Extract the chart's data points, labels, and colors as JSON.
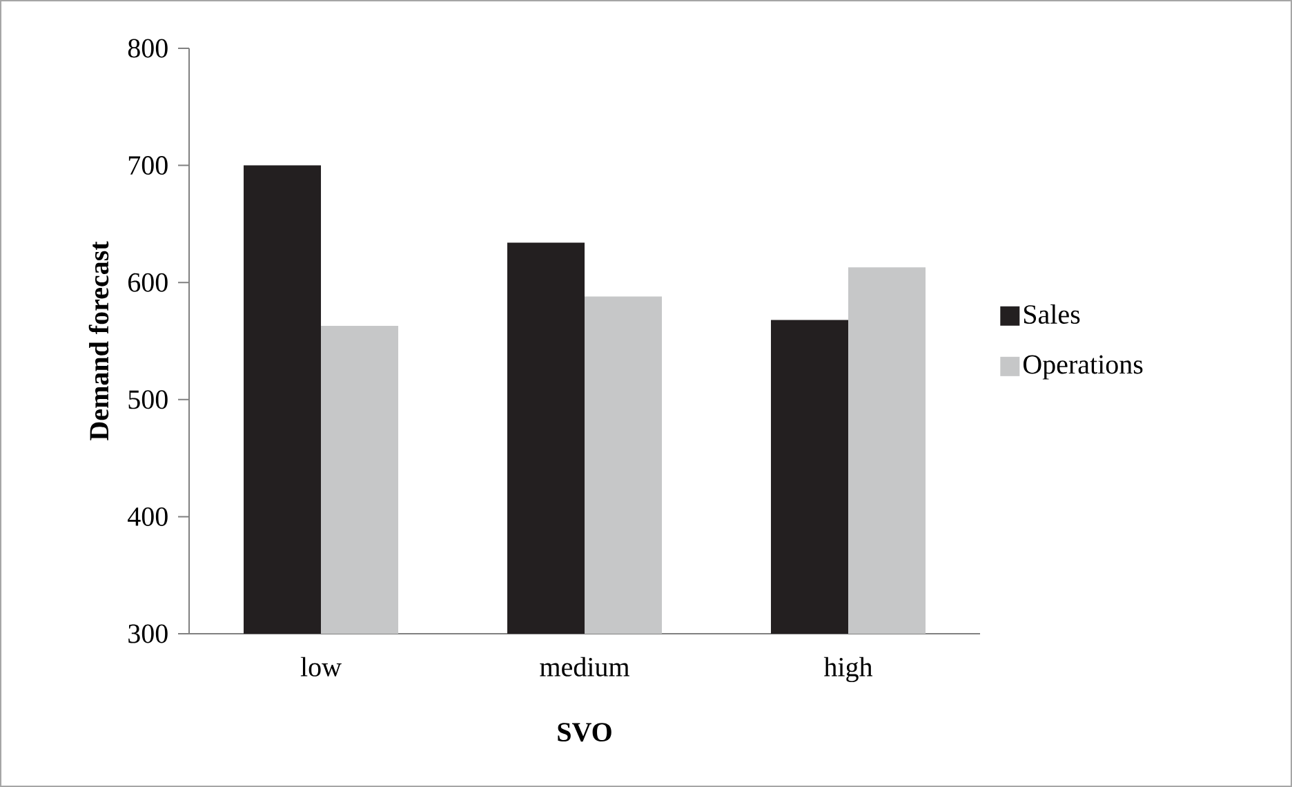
{
  "chart_data": {
    "type": "bar",
    "xlabel": "SVO",
    "ylabel": "Demand forecast",
    "categories": [
      "low",
      "medium",
      "high"
    ],
    "series": [
      {
        "name": "Sales",
        "color": "#231f20",
        "values": [
          700,
          634,
          568
        ]
      },
      {
        "name": "Operations",
        "color": "#c6c7c8",
        "values": [
          563,
          588,
          613
        ]
      }
    ],
    "ylim": [
      300,
      800
    ],
    "yticks": [
      300,
      400,
      500,
      600,
      700,
      800
    ],
    "grid": false,
    "legend": "right"
  }
}
